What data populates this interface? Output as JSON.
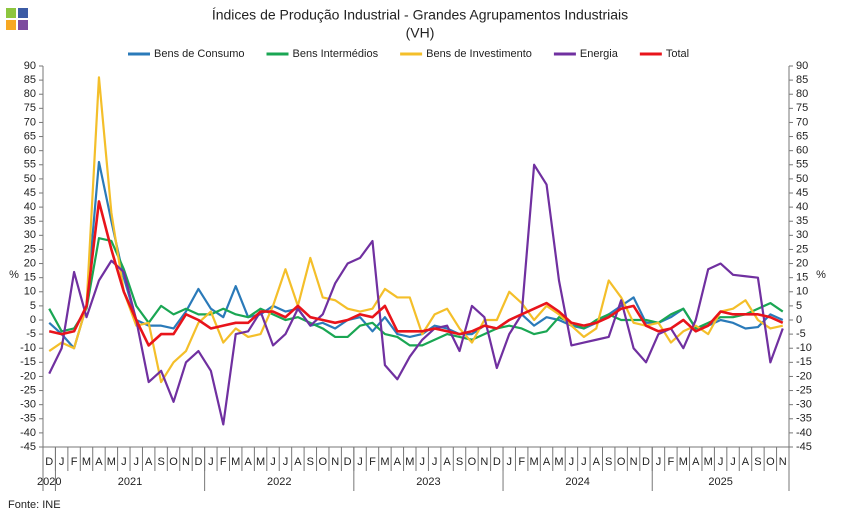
{
  "chart_data": {
    "type": "line",
    "title": "Índices de Produção Industrial - Grandes Agrupamentos Industriais",
    "subtitle": "(VH)",
    "y_label": "%",
    "y2_label": "%",
    "source": "Fonte: INE",
    "categories": [
      "D",
      "J",
      "F",
      "M",
      "A",
      "M",
      "J",
      "J",
      "A",
      "S",
      "O",
      "N",
      "D",
      "J",
      "F",
      "M",
      "A",
      "M",
      "J",
      "J",
      "A",
      "S",
      "O",
      "N",
      "D",
      "J",
      "F",
      "M",
      "A",
      "M",
      "J",
      "J",
      "A",
      "S",
      "O",
      "N",
      "D",
      "J",
      "F",
      "M",
      "A",
      "M",
      "J",
      "J",
      "A",
      "S",
      "O",
      "N",
      "D",
      "J",
      "F",
      "M",
      "A",
      "M",
      "J",
      "J",
      "A",
      "S",
      "O",
      "N"
    ],
    "years": [
      "2020",
      "2021",
      "2022",
      "2023",
      "2024",
      "2025"
    ],
    "ylim": [
      -45,
      90
    ],
    "yticks": [
      -45,
      -40,
      -35,
      -30,
      -25,
      -20,
      -15,
      -10,
      -5,
      0,
      5,
      10,
      15,
      20,
      25,
      30,
      35,
      40,
      45,
      50,
      55,
      60,
      65,
      70,
      75,
      80,
      85,
      90
    ],
    "series": [
      {
        "name": "Bens de Consumo",
        "color": "#2a7ab9",
        "values": [
          -1,
          -5,
          -10,
          5,
          56,
          35,
          15,
          0,
          -2,
          -2,
          -3,
          3,
          11,
          4,
          1,
          12,
          1,
          2,
          5,
          3,
          4,
          -2,
          -1,
          -3,
          0,
          1,
          -4,
          1,
          -5,
          -6,
          -5,
          -2,
          -3,
          -5,
          -5,
          -2,
          -3,
          0,
          2,
          -2,
          1,
          0,
          -2,
          -3,
          -1,
          2,
          5,
          8,
          -1,
          -1,
          1,
          4,
          -3,
          -2,
          0,
          -1,
          -3,
          -2.5,
          2,
          0
        ]
      },
      {
        "name": "Bens Intermédios",
        "color": "#1aa653",
        "values": [
          4,
          -4,
          -3,
          4,
          29,
          28,
          18,
          5,
          -1,
          5,
          2,
          4,
          2,
          2,
          4,
          2,
          1,
          4,
          2,
          0,
          1,
          -1,
          -3,
          -6,
          -6,
          -2,
          -1,
          -5,
          -6,
          -9,
          -9,
          -7,
          -5,
          -6,
          -7,
          -5,
          -3,
          -2,
          -3,
          -5,
          -4,
          1,
          -1,
          -3,
          0,
          2,
          0,
          0,
          0,
          -1,
          2,
          4,
          -3,
          -1,
          1,
          1,
          2,
          4,
          6,
          3
        ]
      },
      {
        "name": "Bens de Investimento",
        "color": "#f4bf2a",
        "values": [
          -11,
          -8,
          -10,
          5,
          86,
          38,
          10,
          -2,
          -1,
          -22,
          -15,
          -11,
          -1,
          3,
          -8,
          -3,
          -6,
          -5,
          5,
          18,
          5,
          22,
          8,
          7,
          4,
          3,
          4,
          11,
          8,
          8,
          -5,
          2,
          4,
          -3,
          -8,
          0,
          0,
          10,
          6,
          0,
          5,
          2,
          -2,
          -6,
          -3,
          14,
          8,
          -1,
          -2,
          -1,
          -8,
          -4,
          -2,
          -5,
          3,
          4,
          7,
          0,
          -3,
          -2
        ]
      },
      {
        "name": "Energia",
        "color": "#7030a0",
        "values": [
          -19,
          -10,
          17,
          1,
          14,
          21,
          17,
          0,
          -22,
          -18,
          -29,
          -15,
          -11,
          -18,
          -37,
          -5,
          -4,
          3,
          -9,
          -5,
          4,
          -2,
          2,
          13,
          20,
          22,
          28,
          -16,
          -21,
          -13,
          -7,
          -3,
          -2,
          -11,
          5,
          1,
          -17,
          -5,
          2,
          55,
          48,
          14,
          -9,
          -8,
          -7,
          -6,
          7,
          -10,
          -15,
          -5,
          -3,
          -10,
          0,
          18,
          20,
          16,
          15.5,
          15,
          -15,
          -3
        ]
      },
      {
        "name": "Total",
        "color": "#e8141b",
        "values": [
          -4,
          -5,
          -4,
          5,
          42,
          25,
          10,
          0,
          -9,
          -5,
          -5,
          2,
          0,
          -3,
          -2,
          -1,
          -1,
          3,
          3,
          1,
          5,
          1,
          0,
          -1,
          0,
          2,
          1,
          5,
          -4,
          -4,
          -4,
          -3,
          -4,
          -5,
          -4,
          -2,
          -3,
          0,
          2,
          4,
          6,
          3,
          -1,
          -2,
          -1,
          1,
          4,
          5,
          -2,
          -4,
          -3,
          0,
          -4,
          -2,
          3,
          2,
          2,
          2,
          1,
          -1
        ]
      }
    ]
  }
}
